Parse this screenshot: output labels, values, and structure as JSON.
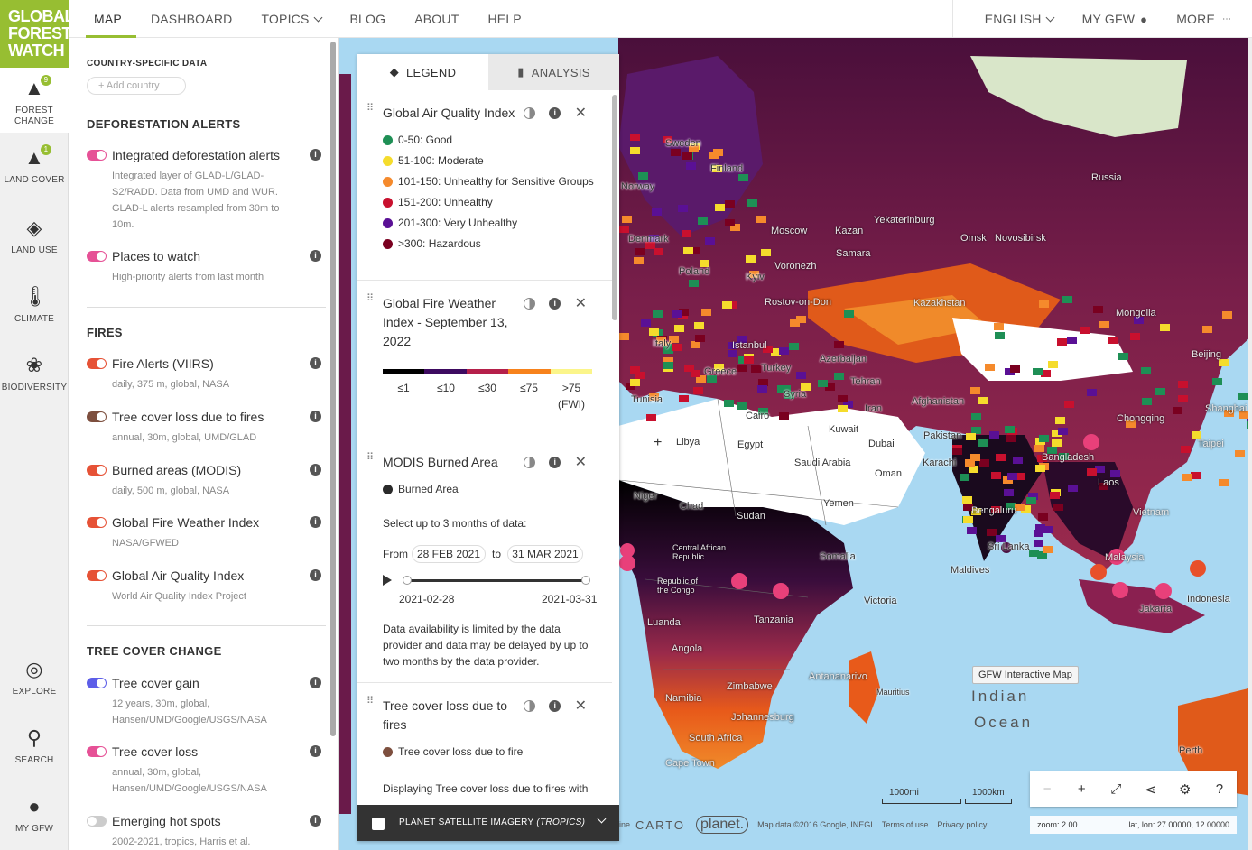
{
  "app": {
    "logo_lines": [
      "GLOBAL",
      "FOREST",
      "WATCH"
    ]
  },
  "nav": {
    "left": [
      "MAP",
      "DASHBOARD",
      "TOPICS",
      "BLOG",
      "ABOUT",
      "HELP"
    ],
    "active": "MAP",
    "right": [
      "ENGLISH",
      "MY GFW",
      "MORE"
    ]
  },
  "rail": {
    "items": [
      {
        "label": "FOREST\nCHANGE",
        "icon": "tree-icon",
        "badge": "9"
      },
      {
        "label": "LAND COVER",
        "icon": "tree-single-icon",
        "badge": "1"
      },
      {
        "label": "LAND USE",
        "icon": "landuse-icon",
        "badge": ""
      },
      {
        "label": "CLIMATE",
        "icon": "thermometer-icon",
        "badge": ""
      },
      {
        "label": "BIODIVERSITY",
        "icon": "paw-icon",
        "badge": ""
      },
      {
        "label": "EXPLORE",
        "icon": "compass-icon",
        "badge": ""
      },
      {
        "label": "SEARCH",
        "icon": "search-icon",
        "badge": ""
      },
      {
        "label": "MY GFW",
        "icon": "user-icon",
        "badge": ""
      }
    ]
  },
  "panel": {
    "country_heading": "COUNTRY-SPECIFIC DATA",
    "add_country": "+ Add country",
    "sections": {
      "deforestation": "DEFORESTATION ALERTS",
      "fires": "FIRES",
      "tree_cover_change": "TREE COVER CHANGE"
    },
    "layers": {
      "integrated": {
        "name": "Integrated deforestation alerts",
        "desc": "Integrated layer of GLAD-L/GLAD-S2/RADD. Data from UMD and WUR. GLAD-L alerts resampled from 30m to 10m.",
        "color": "#e65196",
        "on": true
      },
      "places": {
        "name": "Places to watch",
        "desc": "High-priority alerts from last month",
        "color": "#e65196",
        "on": true
      },
      "viirs": {
        "name": "Fire Alerts (VIIRS)",
        "desc": "daily, 375 m, global, NASA",
        "color": "#e65236",
        "on": true
      },
      "loss_fires": {
        "name": "Tree cover loss due to fires",
        "desc": "annual, 30m, global, UMD/GLAD",
        "color": "#7d4f3e",
        "on": true
      },
      "modis": {
        "name": "Burned areas (MODIS)",
        "desc": "daily, 500 m, global, NASA",
        "color": "#e65236",
        "on": true
      },
      "fwi": {
        "name": "Global Fire Weather Index",
        "desc": "NASA/GFWED",
        "color": "#e65236",
        "on": true
      },
      "aqi": {
        "name": "Global Air Quality Index",
        "desc": "World Air Quality Index Project",
        "color": "#e65236",
        "on": true
      },
      "gain": {
        "name": "Tree cover gain",
        "desc": "12 years, 30m, global, Hansen/UMD/Google/USGS/NASA",
        "color": "#5d5ee8",
        "on": true
      },
      "loss": {
        "name": "Tree cover loss",
        "desc": "annual, 30m, global, Hansen/UMD/Google/USGS/NASA",
        "color": "#e65196",
        "on": true
      },
      "hotspots": {
        "name": "Emerging hot spots",
        "desc": "2002-2021, tropics, Harris et al.",
        "color": "#cccccc",
        "on": false
      }
    }
  },
  "legend": {
    "tabs": [
      "LEGEND",
      "ANALYSIS"
    ],
    "aqi": {
      "title": "Global Air Quality Index",
      "items": [
        {
          "label": "0-50: Good",
          "color": "#1e8f55"
        },
        {
          "label": "51-100: Moderate",
          "color": "#f5dc2c"
        },
        {
          "label": "101-150: Unhealthy for Sensitive Groups",
          "color": "#f58a2c"
        },
        {
          "label": "151-200: Unhealthy",
          "color": "#c8102e"
        },
        {
          "label": "201-300: Very Unhealthy",
          "color": "#5a1095"
        },
        {
          "label": ">300: Hazardous",
          "color": "#7a0020"
        }
      ]
    },
    "fwi": {
      "title_line1": "Global Fire Weather",
      "title_line2": "Index - September 13,",
      "title_line3": "2022",
      "ticks": [
        "≤1",
        "≤10",
        "≤30",
        "≤75",
        ">75"
      ],
      "unit": "(FWI)",
      "colors": [
        "#000000",
        "#3d0a60",
        "#b5204a",
        "#f7821c",
        "#fbf58a"
      ]
    },
    "modis": {
      "title": "MODIS Burned Area",
      "item": "Burned Area",
      "item_color": "#2a2a2a",
      "select_text": "Select up to 3 months of data:",
      "from_label": "From",
      "from_date": "28 FEB 2021",
      "to_label": "to",
      "to_date": "31 MAR 2021",
      "range_start": "2021-02-28",
      "range_end": "2021-03-31",
      "note": "Data availability is limited by the data provider and data may be delayed by up to two months by the data provider."
    },
    "loss_fires": {
      "title_line1": "Tree cover loss due to",
      "title_line2": "fires",
      "item": "Tree cover loss due to fire",
      "item_color": "#7d4f3e",
      "partial": "Displaying Tree cover loss due to fires with"
    },
    "planet": {
      "label": "PLANET SATELLITE IMAGERY",
      "suffix": "(TROPICS)"
    }
  },
  "map": {
    "labels": {
      "sweden": "Sweden",
      "finland": "Finland",
      "norway": "Norway",
      "russia": "Russia",
      "yekaterinburg": "Yekaterinburg",
      "moscow": "Moscow",
      "kazan": "Kazan",
      "omsk": "Omsk",
      "novosibirsk": "Novosibirsk",
      "denmark": "Denmark",
      "poland": "Poland",
      "kyiv": "Kyiv",
      "voronezh": "Voronezh",
      "samara": "Samara",
      "rostov": "Rostov-on-Don",
      "kazakhstan": "Kazakhstan",
      "mongolia": "Mongolia",
      "italy": "Italy",
      "istanbul": "Istanbul",
      "turkey": "Turkey",
      "greece": "Greece",
      "syria": "Syria",
      "azerbaijan": "Azerbaijan",
      "tehran": "Tehran",
      "tunisia": "Tunisia",
      "cairo": "Cairo",
      "libya": "Libya",
      "egypt": "Egypt",
      "kuwait": "Kuwait",
      "dubai": "Dubai",
      "iran": "Iran",
      "afghanistan": "Afghanistan",
      "pakistan": "Pakistan",
      "karachi": "Karachi",
      "saudi": "Saudi Arabia",
      "oman": "Oman",
      "yemen": "Yemen",
      "niger": "Niger",
      "chad": "Chad",
      "sudan": "Sudan",
      "car": "Central African Republic",
      "congo": "Republic of the Congo",
      "somalia": "Somalia",
      "bangladesh": "Bangladesh",
      "bengaluru": "Bengaluru",
      "srilanka": "Sri Lanka",
      "maldives": "Maldives",
      "laos": "Laos",
      "vietnam": "Vietnam",
      "malaysia": "Malaysia",
      "indonesia": "Indonesia",
      "jakarta": "Jakarta",
      "beijing": "Beijing",
      "shanghai": "Shanghai",
      "taipei": "Taipei",
      "chongqing": "Chongqing",
      "victoria": "Victoria",
      "tanzania": "Tanzania",
      "luanda": "Luanda",
      "angola": "Angola",
      "antananarivo": "Antananarivo",
      "namibia": "Namibia",
      "zimbabwe": "Zimbabwe",
      "johannesburg": "Johannesburg",
      "southafrica": "South Africa",
      "capetown": "Cape Town",
      "mauritius": "Mauritius",
      "perth": "Perth"
    },
    "ocean_line1": "Indian",
    "ocean_line2": "Ocean",
    "tooltip": "GFW Interactive Map",
    "scale_left": "1000mi",
    "scale_right": "1000km",
    "attribution": {
      "partial": "ine",
      "carto": "CARTO",
      "planet": "planet.",
      "data": "Map data ©2016 Google, INEGI",
      "terms": "Terms of use",
      "privacy": "Privacy policy"
    },
    "zoom_text": "zoom: 2.00",
    "latlon_text": "lat, lon: 27.00000, 12.00000"
  }
}
